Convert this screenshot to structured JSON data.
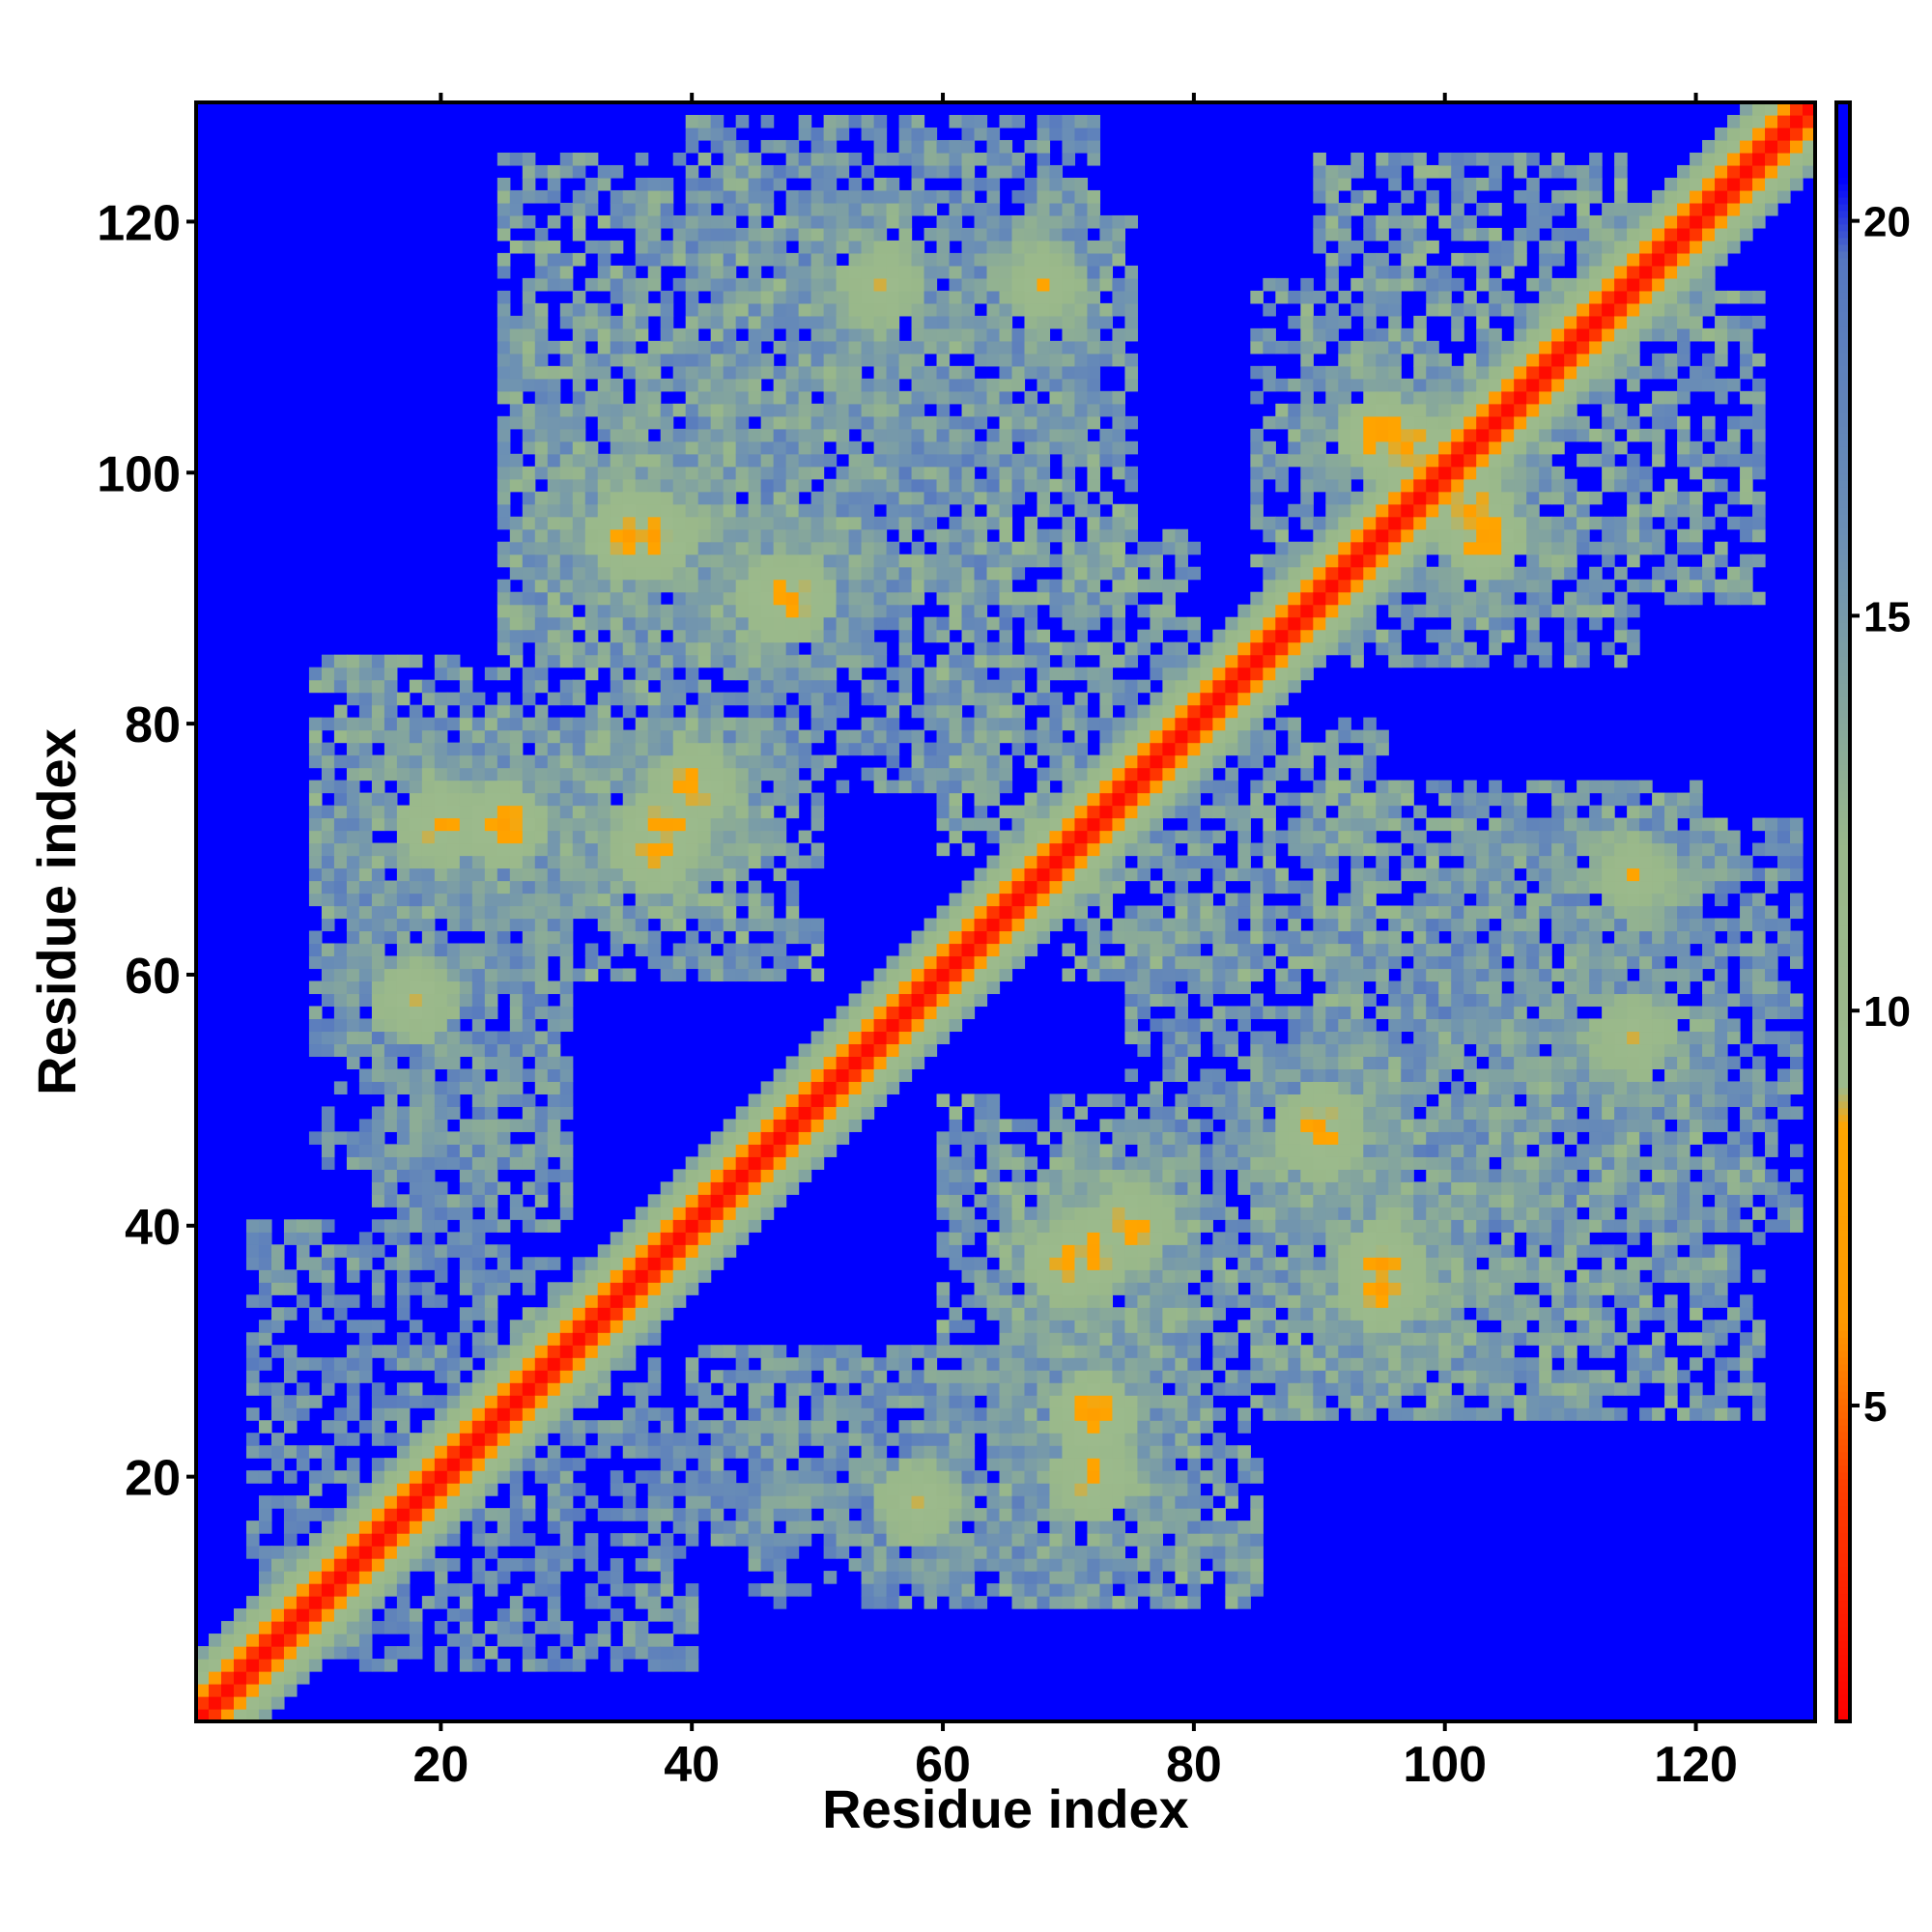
{
  "chart_data": {
    "type": "heatmap",
    "title": "",
    "xlabel": "Residue index",
    "ylabel": "Residue index",
    "n_residues": 129,
    "xlim": [
      1,
      129
    ],
    "ylim": [
      1,
      129
    ],
    "x_ticks": [
      20,
      40,
      60,
      80,
      100,
      120
    ],
    "y_ticks": [
      20,
      40,
      60,
      80,
      100,
      120
    ],
    "colorbar": {
      "range": [
        1,
        21.5
      ],
      "ticks": [
        5,
        10,
        15,
        20
      ],
      "colors": [
        {
          "value": 1.0,
          "color": "#ff0000"
        },
        {
          "value": 4.0,
          "color": "#ff4000"
        },
        {
          "value": 6.0,
          "color": "#ff9900"
        },
        {
          "value": 8.5,
          "color": "#ffa500"
        },
        {
          "value": 9.0,
          "color": "#9cba8c"
        },
        {
          "value": 12.0,
          "color": "#99b88a"
        },
        {
          "value": 16.0,
          "color": "#6b8fb5"
        },
        {
          "value": 19.5,
          "color": "#5577c0"
        },
        {
          "value": 20.5,
          "color": "#0000ff"
        }
      ]
    },
    "background_value": 21,
    "diagonal_band": [
      {
        "offset": 0,
        "value": 1.5
      },
      {
        "offset": 1,
        "value": 3.5
      },
      {
        "offset": 2,
        "value": 6.5
      },
      {
        "offset": 3,
        "value": 9.5
      },
      {
        "offset": 4,
        "value": 12
      },
      {
        "offset": 5,
        "value": 14
      }
    ],
    "contact_blobs": [
      {
        "x": 25,
        "y": 72,
        "value": 6.5
      },
      {
        "x": 38,
        "y": 72,
        "value": 6.5
      },
      {
        "x": 35,
        "y": 95,
        "value": 6.8
      },
      {
        "x": 47,
        "y": 90,
        "value": 6.8
      },
      {
        "x": 70,
        "y": 37,
        "value": 6.8
      },
      {
        "x": 72,
        "y": 20,
        "value": 7.0
      },
      {
        "x": 95,
        "y": 37,
        "value": 6.8
      },
      {
        "x": 90,
        "y": 48,
        "value": 7.0
      },
      {
        "x": 97,
        "y": 102,
        "value": 6.5
      },
      {
        "x": 103,
        "y": 95,
        "value": 6.5
      },
      {
        "x": 58,
        "y": 18,
        "value": 7.5
      },
      {
        "x": 75,
        "y": 40,
        "value": 7.0
      },
      {
        "x": 115,
        "y": 55,
        "value": 8.0
      },
      {
        "x": 30,
        "y": 30,
        "value": 7.0
      },
      {
        "x": 68,
        "y": 115,
        "value": 8.0
      }
    ],
    "neighbourhood_regions": [
      {
        "x": [
          25,
          45
        ],
        "y": [
          85,
          125
        ],
        "value": 12
      },
      {
        "x": [
          45,
          75
        ],
        "y": [
          90,
          122
        ],
        "value": 12
      },
      {
        "x": [
          10,
          30
        ],
        "y": [
          45,
          80
        ],
        "value": 13
      },
      {
        "x": [
          30,
          50
        ],
        "y": [
          60,
          80
        ],
        "value": 12
      },
      {
        "x": [
          65,
          85
        ],
        "y": [
          10,
          45
        ],
        "value": 12
      },
      {
        "x": [
          85,
          110
        ],
        "y": [
          25,
          45
        ],
        "value": 12
      },
      {
        "x": [
          90,
          115
        ],
        "y": [
          85,
          125
        ],
        "value": 12
      },
      {
        "x": [
          100,
          128
        ],
        "y": [
          40,
          72
        ],
        "value": 13
      },
      {
        "x": [
          40,
          70
        ],
        "y": [
          15,
          30
        ],
        "value": 13
      },
      {
        "x": [
          5,
          25
        ],
        "y": [
          5,
          40
        ],
        "value": 13
      },
      {
        "x": [
          70,
          95
        ],
        "y": [
          60,
          80
        ],
        "value": 12
      },
      {
        "x": [
          75,
          100
        ],
        "y": [
          45,
          65
        ],
        "value": 13
      }
    ]
  }
}
